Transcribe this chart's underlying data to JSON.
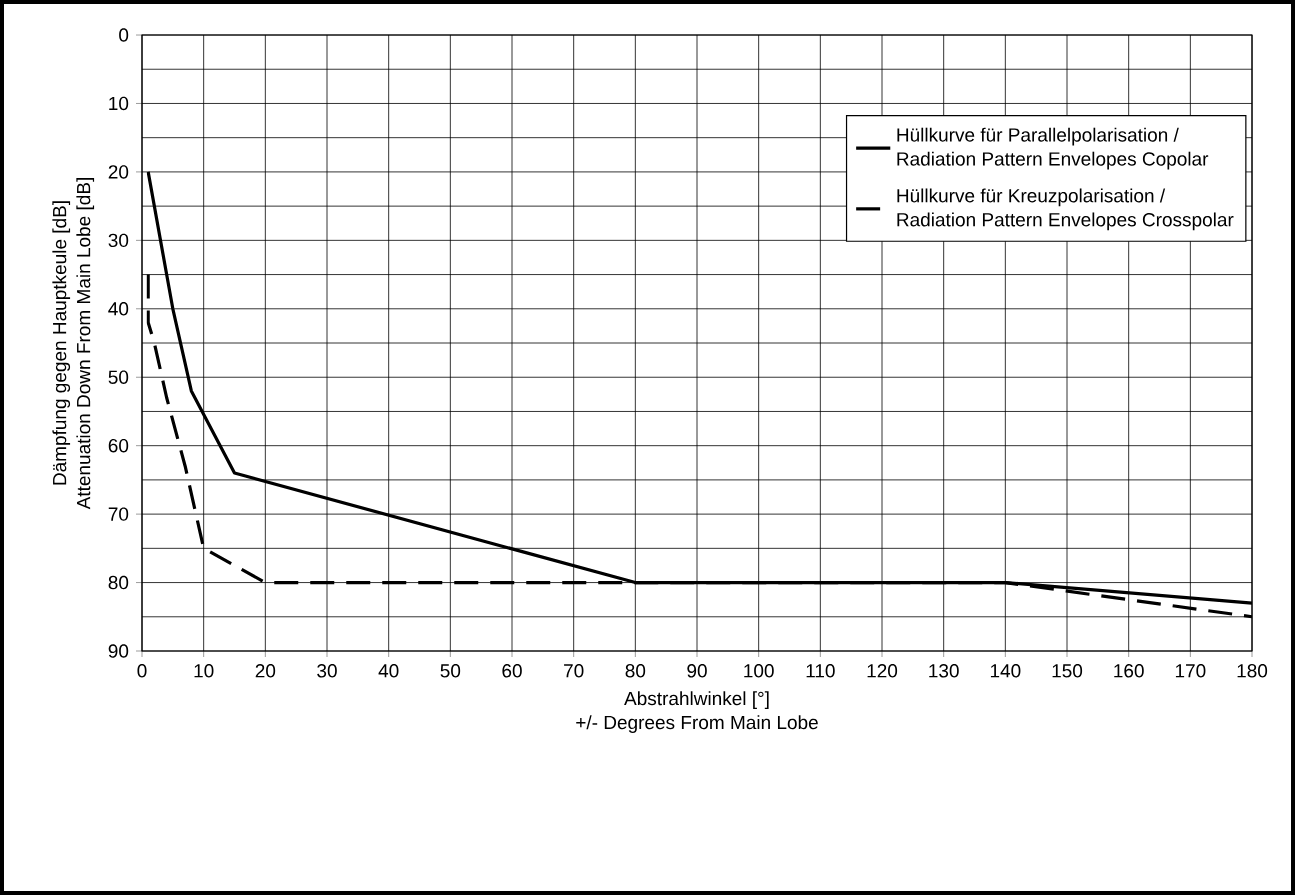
{
  "chart_data": {
    "type": "line",
    "xlabel": "Abstrahlwinkel [°]\n+/- Degrees From Main Lobe",
    "ylabel": "Dämpfung gegen Hauptkeule [dB]\nAttenuation Down From Main Lobe [dB]",
    "xlim": [
      0,
      180
    ],
    "xticks": [
      0,
      10,
      20,
      30,
      40,
      50,
      60,
      70,
      80,
      90,
      100,
      110,
      120,
      130,
      140,
      150,
      160,
      170,
      180
    ],
    "ylim": [
      90,
      0
    ],
    "yticks": [
      0,
      10,
      20,
      30,
      40,
      50,
      60,
      70,
      80,
      90
    ],
    "grid": true,
    "legend": "top right",
    "marker": "none",
    "series": [
      {
        "name": "Hüllkurve für Parallelpolarisation /\nRadiation Pattern Envelopes Copolar",
        "color": "#000000",
        "line_style": "solid",
        "x": [
          1,
          5,
          8,
          15,
          80,
          140,
          180
        ],
        "values": [
          20,
          40,
          52,
          64,
          80,
          80,
          83
        ]
      },
      {
        "name": "Hüllkurve für Kreuzpolarisation /\nRadiation Pattern Envelopes Crosspolar",
        "color": "#000000",
        "line_style": "dashed",
        "x": [
          1,
          1,
          2,
          4,
          7,
          10,
          20,
          140,
          180
        ],
        "values": [
          35,
          42,
          45,
          53,
          63,
          75,
          80,
          80,
          85
        ]
      }
    ]
  }
}
